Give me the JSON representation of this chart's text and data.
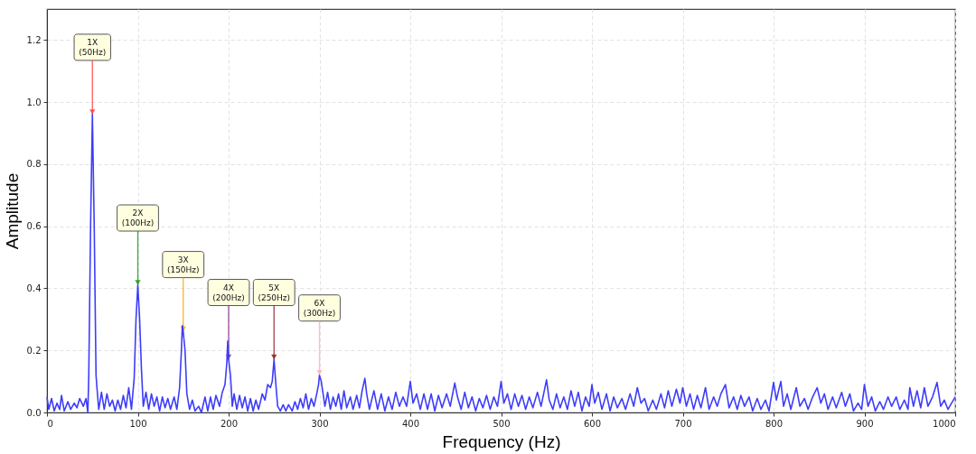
{
  "chart_data": {
    "type": "line",
    "xlabel": "Frequency (Hz)",
    "ylabel": "Amplitude",
    "x": [
      0,
      2,
      5,
      8,
      11,
      14,
      16,
      19,
      23,
      26,
      30,
      33,
      36,
      40,
      43,
      45,
      46,
      48,
      50,
      52,
      54,
      55,
      57,
      60,
      63,
      66,
      69,
      72,
      75,
      78,
      81,
      84,
      87,
      90,
      93,
      96,
      98,
      100,
      102,
      104,
      106,
      109,
      112,
      115,
      118,
      121,
      124,
      127,
      130,
      133,
      136,
      140,
      143,
      146,
      148,
      149,
      150,
      152,
      154,
      157,
      160,
      163,
      167,
      170,
      174,
      177,
      180,
      183,
      186,
      190,
      193,
      196,
      198,
      199,
      200,
      202,
      204,
      206,
      209,
      212,
      215,
      218,
      221,
      224,
      227,
      230,
      233,
      237,
      240,
      243,
      246,
      248,
      250,
      252,
      254,
      257,
      260,
      263,
      266,
      270,
      273,
      276,
      279,
      282,
      285,
      288,
      291,
      294,
      297,
      299,
      300,
      302,
      304,
      306,
      309,
      312,
      315,
      318,
      321,
      324,
      327,
      330,
      334,
      337,
      341,
      344,
      347,
      350,
      352,
      355,
      360,
      364,
      368,
      372,
      376,
      380,
      384,
      388,
      392,
      396,
      400,
      403,
      407,
      411,
      415,
      419,
      423,
      427,
      431,
      435,
      440,
      444,
      449,
      452,
      456,
      460,
      464,
      468,
      472,
      476,
      480,
      484,
      488,
      492,
      496,
      500,
      503,
      507,
      511,
      515,
      519,
      523,
      527,
      531,
      535,
      540,
      544,
      550,
      553,
      557,
      561,
      565,
      569,
      573,
      577,
      581,
      585,
      589,
      593,
      597,
      600,
      603,
      607,
      611,
      616,
      620,
      624,
      628,
      633,
      637,
      642,
      646,
      650,
      654,
      658,
      662,
      667,
      671,
      676,
      680,
      684,
      688,
      693,
      697,
      700,
      704,
      708,
      712,
      716,
      720,
      725,
      729,
      734,
      738,
      742,
      747,
      751,
      756,
      760,
      764,
      768,
      773,
      777,
      782,
      786,
      791,
      795,
      800,
      803,
      808,
      811,
      815,
      819,
      825,
      829,
      834,
      838,
      843,
      848,
      852,
      856,
      860,
      865,
      869,
      875,
      879,
      884,
      888,
      893,
      897,
      900,
      904,
      908,
      912,
      917,
      921,
      926,
      930,
      935,
      939,
      944,
      948,
      950,
      954,
      958,
      962,
      966,
      970,
      975,
      980,
      984,
      988,
      992,
      996,
      1000
    ],
    "series": [
      {
        "color": "#3d3dfa",
        "values": [
          0.05,
          0.01,
          0.045,
          0.005,
          0.03,
          0.01,
          0.055,
          0.005,
          0.035,
          0.01,
          0.03,
          0.015,
          0.045,
          0.02,
          0.045,
          0.0,
          0.12,
          0.6,
          0.96,
          0.6,
          0.12,
          0.08,
          0.01,
          0.065,
          0.01,
          0.06,
          0.02,
          0.04,
          0.005,
          0.04,
          0.01,
          0.055,
          0.015,
          0.08,
          0.01,
          0.11,
          0.3,
          0.41,
          0.3,
          0.14,
          0.02,
          0.065,
          0.01,
          0.06,
          0.02,
          0.05,
          0.005,
          0.05,
          0.015,
          0.045,
          0.01,
          0.05,
          0.01,
          0.08,
          0.2,
          0.28,
          0.26,
          0.2,
          0.06,
          0.01,
          0.04,
          0.005,
          0.02,
          0.0,
          0.05,
          0.005,
          0.05,
          0.01,
          0.055,
          0.02,
          0.065,
          0.09,
          0.16,
          0.23,
          0.17,
          0.12,
          0.02,
          0.06,
          0.01,
          0.055,
          0.015,
          0.05,
          0.005,
          0.045,
          0.005,
          0.04,
          0.01,
          0.06,
          0.04,
          0.09,
          0.08,
          0.1,
          0.17,
          0.09,
          0.02,
          0.005,
          0.025,
          0.005,
          0.025,
          0.005,
          0.035,
          0.01,
          0.045,
          0.015,
          0.06,
          0.01,
          0.045,
          0.02,
          0.06,
          0.09,
          0.12,
          0.1,
          0.06,
          0.02,
          0.065,
          0.01,
          0.05,
          0.02,
          0.06,
          0.01,
          0.07,
          0.015,
          0.05,
          0.01,
          0.055,
          0.015,
          0.07,
          0.11,
          0.06,
          0.01,
          0.07,
          0.01,
          0.06,
          0.005,
          0.05,
          0.01,
          0.065,
          0.02,
          0.05,
          0.02,
          0.1,
          0.03,
          0.06,
          0.01,
          0.06,
          0.01,
          0.06,
          0.005,
          0.055,
          0.015,
          0.06,
          0.02,
          0.095,
          0.05,
          0.01,
          0.065,
          0.015,
          0.05,
          0.005,
          0.045,
          0.015,
          0.055,
          0.01,
          0.05,
          0.02,
          0.1,
          0.03,
          0.06,
          0.01,
          0.06,
          0.02,
          0.055,
          0.01,
          0.05,
          0.015,
          0.065,
          0.02,
          0.105,
          0.04,
          0.01,
          0.06,
          0.015,
          0.05,
          0.01,
          0.07,
          0.02,
          0.065,
          0.005,
          0.05,
          0.02,
          0.09,
          0.03,
          0.065,
          0.01,
          0.06,
          0.005,
          0.05,
          0.015,
          0.045,
          0.01,
          0.06,
          0.02,
          0.08,
          0.03,
          0.045,
          0.005,
          0.04,
          0.01,
          0.06,
          0.015,
          0.07,
          0.02,
          0.075,
          0.03,
          0.08,
          0.02,
          0.06,
          0.01,
          0.055,
          0.015,
          0.08,
          0.01,
          0.05,
          0.02,
          0.06,
          0.09,
          0.015,
          0.05,
          0.01,
          0.055,
          0.02,
          0.05,
          0.005,
          0.045,
          0.01,
          0.04,
          0.005,
          0.097,
          0.04,
          0.1,
          0.02,
          0.06,
          0.01,
          0.08,
          0.02,
          0.045,
          0.01,
          0.05,
          0.08,
          0.03,
          0.06,
          0.01,
          0.05,
          0.015,
          0.065,
          0.02,
          0.06,
          0.005,
          0.03,
          0.01,
          0.09,
          0.02,
          0.05,
          0.005,
          0.035,
          0.01,
          0.05,
          0.02,
          0.05,
          0.01,
          0.04,
          0.01,
          0.08,
          0.02,
          0.07,
          0.015,
          0.08,
          0.02,
          0.05,
          0.097,
          0.02,
          0.04,
          0.01,
          0.03,
          0.05
        ]
      }
    ],
    "xlim": [
      0,
      1000
    ],
    "ylim": [
      0,
      1.3
    ],
    "xticks": [
      0,
      100,
      200,
      300,
      400,
      500,
      600,
      700,
      800,
      900,
      1000
    ],
    "yticks": [
      {
        "value": 0,
        "label": "0.0"
      },
      0.2,
      0.4,
      0.6,
      0.8,
      {
        "value": 1,
        "label": "1.0"
      },
      1.2
    ],
    "grid": true,
    "line_style": "solid",
    "annotations": [
      {
        "text": "1X\n(50Hz)",
        "x": 50,
        "y": 0.96
      },
      {
        "text": "2X\n(100Hz)",
        "x": 100,
        "y": 0.41
      },
      {
        "text": "3X\n(150Hz)",
        "x": 150,
        "y": 0.26
      },
      {
        "text": "4X\n(200Hz)",
        "x": 200,
        "y": 0.17
      },
      {
        "text": "5X\n(250Hz)",
        "x": 250,
        "y": 0.17
      },
      {
        "text": "6X\n(300Hz)",
        "x": 300,
        "y": 0.12
      }
    ]
  }
}
